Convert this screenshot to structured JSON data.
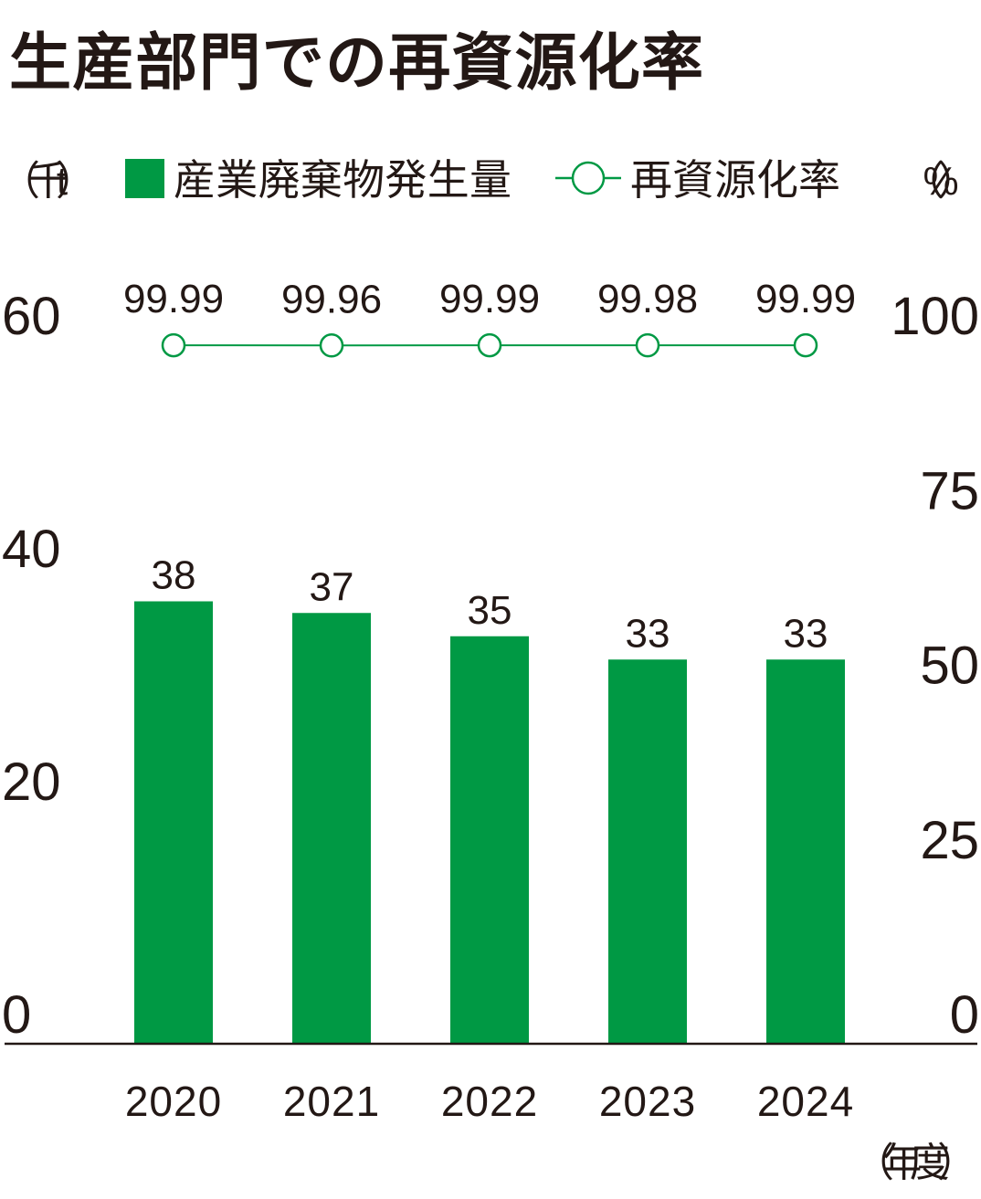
{
  "colors": {
    "bar": "#009944",
    "line": "#009944",
    "text": "#231815",
    "axis": "#231815",
    "background": "#ffffff"
  },
  "chart_data": {
    "type": "bar",
    "title": "生産部門での再資源化率",
    "categories": [
      "2020",
      "2021",
      "2022",
      "2023",
      "2024"
    ],
    "series": [
      {
        "name": "産業廃棄物発生量",
        "type": "bar",
        "values": [
          38,
          37,
          35,
          33,
          33
        ]
      },
      {
        "name": "再資源化率",
        "type": "line",
        "values": [
          99.99,
          99.96,
          99.99,
          99.98,
          99.99
        ]
      }
    ],
    "y_left": {
      "label": "（千t）",
      "range": [
        0,
        60
      ],
      "ticks": [
        0,
        20,
        40,
        60
      ]
    },
    "y_right": {
      "label": "（%）",
      "range": [
        0,
        100
      ],
      "ticks": [
        0,
        25,
        50,
        75,
        100
      ]
    },
    "xlabel": "（年度）",
    "grid": false,
    "legend_position": "top"
  }
}
